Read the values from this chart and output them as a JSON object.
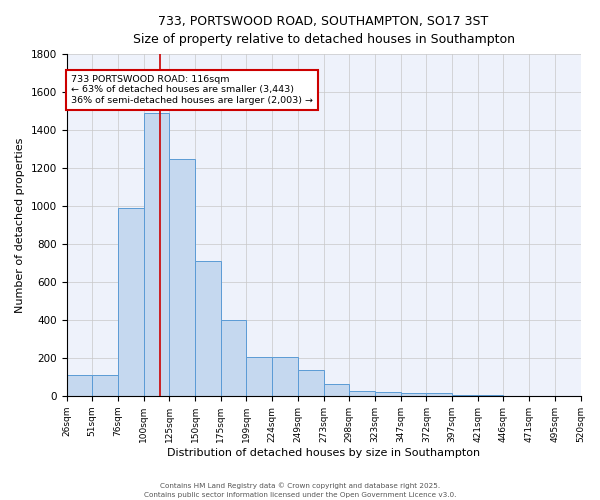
{
  "title_line1": "733, PORTSWOOD ROAD, SOUTHAMPTON, SO17 3ST",
  "title_line2": "Size of property relative to detached houses in Southampton",
  "xlabel": "Distribution of detached houses by size in Southampton",
  "ylabel": "Number of detached properties",
  "categories": [
    "26sqm",
    "51sqm",
    "76sqm",
    "100sqm",
    "125sqm",
    "150sqm",
    "175sqm",
    "199sqm",
    "224sqm",
    "249sqm",
    "273sqm",
    "298sqm",
    "323sqm",
    "347sqm",
    "372sqm",
    "397sqm",
    "421sqm",
    "446sqm",
    "471sqm",
    "495sqm",
    "520sqm"
  ],
  "bar_heights": [
    110,
    110,
    990,
    1490,
    1250,
    710,
    400,
    205,
    205,
    135,
    60,
    25,
    20,
    15,
    15,
    5,
    5,
    0,
    0,
    0,
    0
  ],
  "bar_color": "#c5d8ef",
  "bar_edge_color": "#5b9bd5",
  "red_line_x": 3.64,
  "red_line_color": "#cc0000",
  "annotation_text": "733 PORTSWOOD ROAD: 116sqm\n← 63% of detached houses are smaller (3,443)\n36% of semi-detached houses are larger (2,003) →",
  "annotation_box_color": "#cc0000",
  "annotation_box_fill": "#ffffff",
  "ylim": [
    0,
    1800
  ],
  "yticks": [
    0,
    200,
    400,
    600,
    800,
    1000,
    1200,
    1400,
    1600,
    1800
  ],
  "background_color": "#eef2fb",
  "grid_color": "#c8c8c8",
  "footer_text1": "Contains HM Land Registry data © Crown copyright and database right 2025.",
  "footer_text2": "Contains public sector information licensed under the Open Government Licence v3.0."
}
